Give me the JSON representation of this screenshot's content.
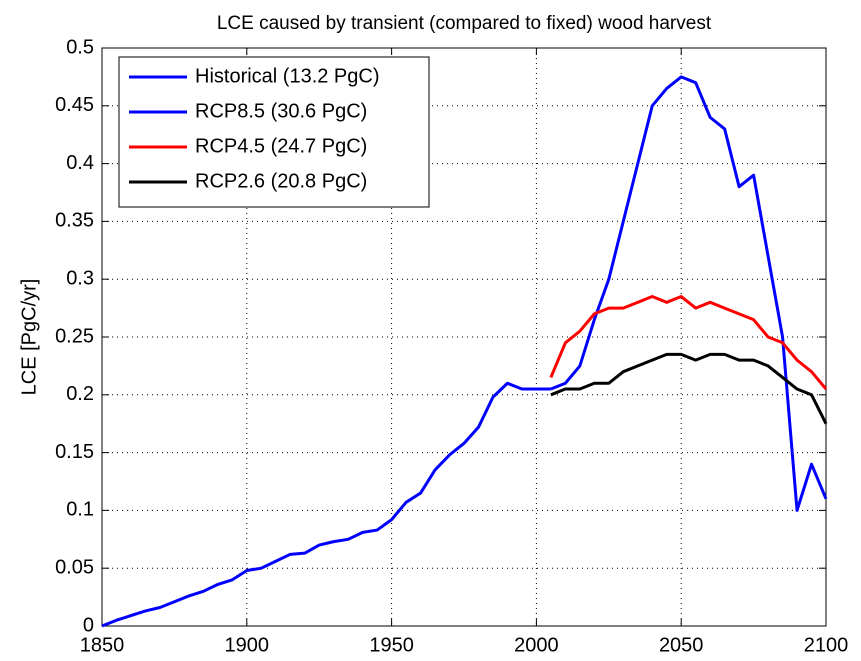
{
  "chart_data": {
    "type": "line",
    "title": "LCE caused by transient (compared to fixed) wood harvest",
    "y_label": "LCE [PgC/yr]",
    "x": [
      1850,
      1855,
      1860,
      1865,
      1870,
      1875,
      1880,
      1885,
      1890,
      1895,
      1900,
      1905,
      1910,
      1915,
      1920,
      1925,
      1930,
      1935,
      1940,
      1945,
      1950,
      1955,
      1960,
      1965,
      1970,
      1975,
      1980,
      1985,
      1990,
      1995,
      2000,
      2005,
      2010,
      2015,
      2020,
      2025,
      2030,
      2035,
      2040,
      2045,
      2050,
      2055,
      2060,
      2065,
      2070,
      2075,
      2080,
      2085,
      2090,
      2095,
      2100
    ],
    "series": [
      {
        "name": "Historical (13.2 PgC)",
        "color": "#0000ff",
        "values": [
          0,
          0.005,
          0.009,
          0.013,
          0.016,
          0.021,
          0.026,
          0.03,
          0.036,
          0.04,
          0.048,
          0.05,
          0.056,
          0.062,
          0.063,
          0.07,
          0.073,
          0.075,
          0.081,
          0.083,
          0.092,
          0.107,
          0.115,
          0.135,
          0.148,
          0.158,
          0.172,
          0.198,
          0.21,
          0.205,
          0.205,
          0.205,
          null,
          null,
          null,
          null,
          null,
          null,
          null,
          null,
          null,
          null,
          null,
          null,
          null,
          null,
          null,
          null,
          null,
          null,
          null
        ]
      },
      {
        "name": "RCP8.5 (30.6 PgC)",
        "color": "#0000ff",
        "values": [
          null,
          null,
          null,
          null,
          null,
          null,
          null,
          null,
          null,
          null,
          null,
          null,
          null,
          null,
          null,
          null,
          null,
          null,
          null,
          null,
          null,
          null,
          null,
          null,
          null,
          null,
          null,
          null,
          null,
          null,
          null,
          0.205,
          0.21,
          0.225,
          0.265,
          0.3,
          0.35,
          0.4,
          0.45,
          0.465,
          0.475,
          0.47,
          0.44,
          0.43,
          0.38,
          0.39,
          0.32,
          0.25,
          0.1,
          0.14,
          0.11
        ]
      },
      {
        "name": "RCP4.5 (24.7 PgC)",
        "color": "#ff0000",
        "values": [
          null,
          null,
          null,
          null,
          null,
          null,
          null,
          null,
          null,
          null,
          null,
          null,
          null,
          null,
          null,
          null,
          null,
          null,
          null,
          null,
          null,
          null,
          null,
          null,
          null,
          null,
          null,
          null,
          null,
          null,
          null,
          0.215,
          0.245,
          0.255,
          0.27,
          0.275,
          0.275,
          0.28,
          0.285,
          0.28,
          0.285,
          0.275,
          0.28,
          0.275,
          0.27,
          0.265,
          0.25,
          0.245,
          0.23,
          0.22,
          0.205
        ]
      },
      {
        "name": "RCP2.6 (20.8 PgC)",
        "color": "#000000",
        "values": [
          null,
          null,
          null,
          null,
          null,
          null,
          null,
          null,
          null,
          null,
          null,
          null,
          null,
          null,
          null,
          null,
          null,
          null,
          null,
          null,
          null,
          null,
          null,
          null,
          null,
          null,
          null,
          null,
          null,
          null,
          null,
          0.2,
          0.205,
          0.205,
          0.21,
          0.21,
          0.22,
          0.225,
          0.23,
          0.235,
          0.235,
          0.23,
          0.235,
          0.235,
          0.23,
          0.23,
          0.225,
          0.215,
          0.205,
          0.2,
          0.175
        ]
      }
    ],
    "xlim": [
      1850,
      2100
    ],
    "xticks": [
      1850,
      1900,
      1950,
      2000,
      2050,
      2100
    ],
    "ylim": [
      0,
      0.5
    ],
    "yticks": [
      0,
      0.05,
      0.1,
      0.15,
      0.2,
      0.25,
      0.3,
      0.35,
      0.4,
      0.45,
      0.5
    ],
    "grid": true,
    "legend": "upper left"
  }
}
